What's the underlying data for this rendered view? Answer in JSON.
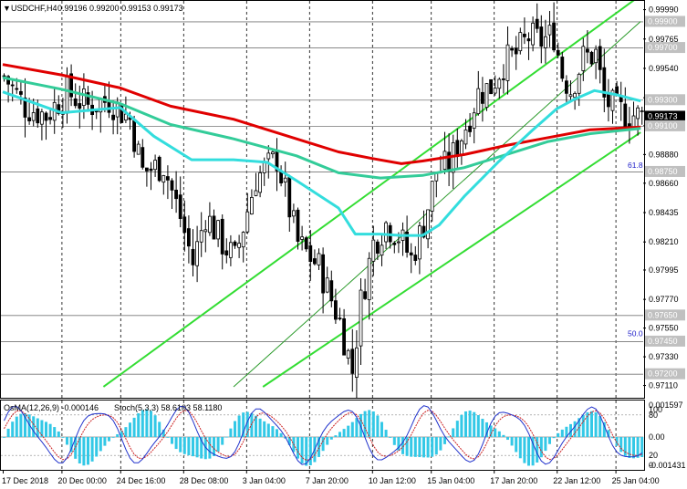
{
  "header": {
    "symbol": "USDCHF,H4",
    "ohlc": "0.99196 0.99200 0.99153 0.99173"
  },
  "indicator_header": {
    "osma": "OsMA(12,26,9) -0.000146",
    "stoch": "Stoch(5,3,3) 58.6103 58.1180"
  },
  "colors": {
    "ema_red": "#e00000",
    "ema_green": "#33cc99",
    "ema_cyan": "#33dddd",
    "channel": "#33dd33",
    "candle": "#000000",
    "osma_bar": "#33c8e6",
    "stoch_main": "#2233cc",
    "stoch_signal": "#cc2222",
    "grid": "#000000",
    "price_label_bg": "#c0c0c0",
    "current_label_bg": "#000000"
  },
  "fib_labels": [
    {
      "text": "61.8",
      "price": 0.98798
    },
    {
      "text": "50.0",
      "price": 0.97509
    }
  ],
  "chart_data": {
    "type": "candlestick",
    "title": "USDCHF,H4",
    "y_axis_ticks": [
      "0.99990",
      "0.99765",
      "0.99540",
      "0.99315",
      "0.99100",
      "0.98880",
      "0.98660",
      "0.98435",
      "0.98210",
      "0.97995",
      "0.97770",
      "0.97550",
      "0.97330",
      "0.97110"
    ],
    "y_axis_prices": [
      0.9999,
      0.99765,
      0.9954,
      0.99315,
      0.991,
      0.9888,
      0.9866,
      0.98435,
      0.9821,
      0.97995,
      0.9777,
      0.9755,
      0.9733,
      0.9711
    ],
    "ylim": [
      0.97016,
      1.00057
    ],
    "price_labels": [
      {
        "text": "0.99900",
        "price": 0.999,
        "kind": "level"
      },
      {
        "text": "0.99700",
        "price": 0.997,
        "kind": "level"
      },
      {
        "text": "0.99300",
        "price": 0.993,
        "kind": "level"
      },
      {
        "text": "0.99173",
        "price": 0.99173,
        "kind": "current"
      },
      {
        "text": "0.99100",
        "price": 0.991,
        "kind": "level"
      },
      {
        "text": "0.98750",
        "price": 0.9875,
        "kind": "level"
      },
      {
        "text": "0.97650",
        "price": 0.9765,
        "kind": "level"
      },
      {
        "text": "0.97450",
        "price": 0.9745,
        "kind": "level"
      },
      {
        "text": "0.97200",
        "price": 0.972,
        "kind": "level"
      }
    ],
    "x_axis_labels": [
      "17 Dec 2018",
      "20 Dec 00:00",
      "24 Dec 16:00",
      "28 Dec 08:00",
      "3 Jan 04:00",
      "7 Jan 20:00",
      "10 Jan 12:00",
      "15 Jan 04:00",
      "17 Jan 20:00",
      "22 Jan 12:00",
      "25 Jan 04:00"
    ],
    "x_axis_bar_index": [
      0,
      14,
      28,
      43,
      58,
      73,
      88,
      102,
      117,
      132,
      146
    ],
    "price_anchor_path": [
      [
        0,
        0.9948
      ],
      [
        5,
        0.9925
      ],
      [
        10,
        0.9918
      ],
      [
        15,
        0.9936
      ],
      [
        20,
        0.9925
      ],
      [
        25,
        0.993
      ],
      [
        30,
        0.9915
      ],
      [
        33,
        0.9875
      ],
      [
        38,
        0.988
      ],
      [
        42,
        0.984
      ],
      [
        45,
        0.9805
      ],
      [
        48,
        0.9842
      ],
      [
        52,
        0.982
      ],
      [
        55,
        0.9808
      ],
      [
        60,
        0.987
      ],
      [
        65,
        0.9885
      ],
      [
        70,
        0.982
      ],
      [
        75,
        0.9802
      ],
      [
        80,
        0.976
      ],
      [
        83,
        0.9722
      ],
      [
        85,
        0.9775
      ],
      [
        88,
        0.982
      ],
      [
        91,
        0.9835
      ],
      [
        94,
        0.9826
      ],
      [
        97,
        0.9808
      ],
      [
        100,
        0.9835
      ],
      [
        103,
        0.9875
      ],
      [
        106,
        0.988
      ],
      [
        110,
        0.991
      ],
      [
        113,
        0.9935
      ],
      [
        116,
        0.994
      ],
      [
        119,
        0.9958
      ],
      [
        122,
        0.9965
      ],
      [
        125,
        0.9978
      ],
      [
        128,
        0.9975
      ],
      [
        131,
        0.998
      ],
      [
        133,
        0.995
      ],
      [
        135,
        0.9938
      ],
      [
        138,
        0.9962
      ],
      [
        141,
        0.9965
      ],
      [
        143,
        0.993
      ],
      [
        146,
        0.9922
      ],
      [
        149,
        0.9919
      ],
      [
        152,
        0.9917
      ]
    ],
    "ema_red": [
      [
        0,
        0.9957
      ],
      [
        14,
        0.9949
      ],
      [
        28,
        0.9939
      ],
      [
        40,
        0.9925
      ],
      [
        55,
        0.9915
      ],
      [
        70,
        0.99
      ],
      [
        80,
        0.989
      ],
      [
        88,
        0.9885
      ],
      [
        95,
        0.9881
      ],
      [
        100,
        0.9883
      ],
      [
        110,
        0.9888
      ],
      [
        120,
        0.9895
      ],
      [
        130,
        0.9901
      ],
      [
        140,
        0.9907
      ],
      [
        152,
        0.9909
      ]
    ],
    "ema_green": [
      [
        0,
        0.9947
      ],
      [
        14,
        0.9938
      ],
      [
        28,
        0.9927
      ],
      [
        40,
        0.9911
      ],
      [
        55,
        0.99
      ],
      [
        70,
        0.9887
      ],
      [
        80,
        0.9874
      ],
      [
        90,
        0.987
      ],
      [
        100,
        0.9872
      ],
      [
        110,
        0.9878
      ],
      [
        120,
        0.9888
      ],
      [
        130,
        0.9898
      ],
      [
        140,
        0.9904
      ],
      [
        152,
        0.9908
      ]
    ],
    "ema_cyan": [
      [
        0,
        0.9936
      ],
      [
        14,
        0.992
      ],
      [
        28,
        0.9924
      ],
      [
        36,
        0.9902
      ],
      [
        45,
        0.9884
      ],
      [
        55,
        0.9884
      ],
      [
        63,
        0.9882
      ],
      [
        70,
        0.9868
      ],
      [
        80,
        0.9847
      ],
      [
        84,
        0.9827
      ],
      [
        90,
        0.9827
      ],
      [
        95,
        0.9826
      ],
      [
        100,
        0.9826
      ],
      [
        104,
        0.9834
      ],
      [
        110,
        0.9856
      ],
      [
        118,
        0.9882
      ],
      [
        126,
        0.9906
      ],
      [
        132,
        0.9923
      ],
      [
        136,
        0.993
      ],
      [
        141,
        0.9937
      ],
      [
        146,
        0.9934
      ],
      [
        152,
        0.9929
      ]
    ],
    "channel_lines": [
      {
        "name": "channel-upper",
        "p1": [
          24,
          0.971
        ],
        "p2": [
          152,
          1.001
        ],
        "width": 2
      },
      {
        "name": "channel-lower",
        "p1": [
          62,
          0.971
        ],
        "p2": [
          152,
          0.9905
        ],
        "width": 2
      },
      {
        "name": "trend-mid",
        "p1": [
          55,
          0.971
        ],
        "p2": [
          152,
          0.999
        ],
        "width": 1
      }
    ],
    "oscillator": {
      "labels": [
        "0.001597",
        "100",
        "80",
        "0.00",
        "20",
        "0",
        "-0.001431"
      ],
      "osma_range": [
        -0.001431,
        0.001597
      ]
    }
  }
}
